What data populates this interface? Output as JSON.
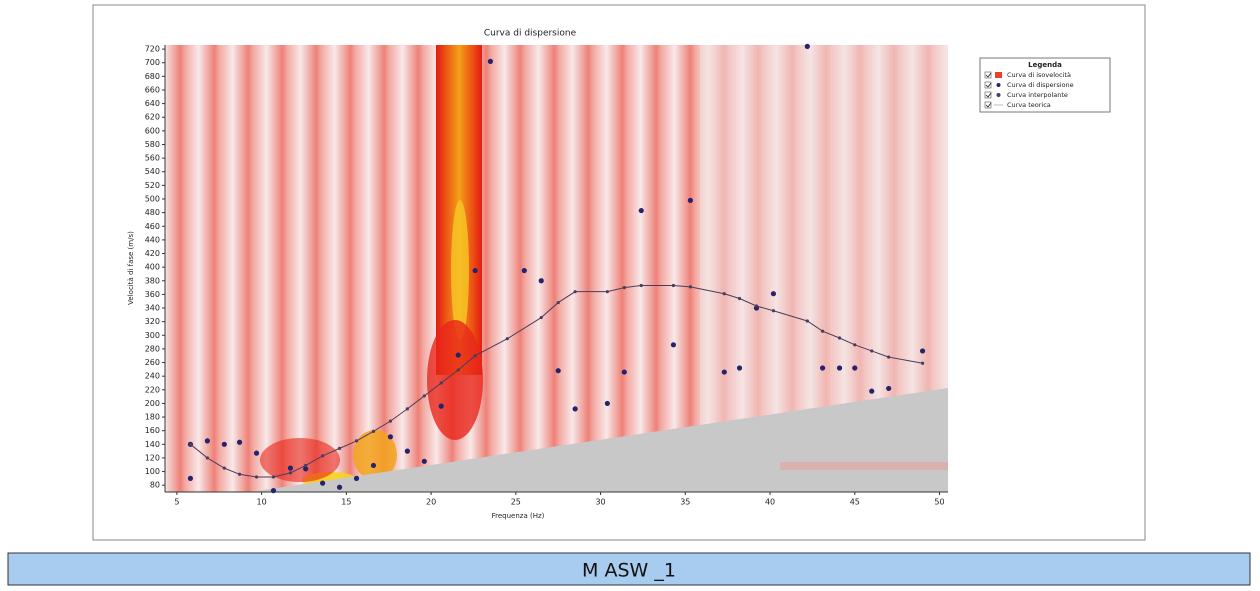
{
  "chart_data": {
    "type": "scatter",
    "title": "Curva di dispersione",
    "x_label": "Frequenza (Hz)",
    "y_label": "Velocità di fase (m/s)",
    "xlim": [
      4.3,
      50.5
    ],
    "ylim": [
      70,
      726
    ],
    "xticks": [
      5,
      10,
      15,
      20,
      25,
      30,
      35,
      40,
      45,
      50
    ],
    "yticks": [
      80,
      100,
      120,
      140,
      160,
      180,
      200,
      220,
      240,
      260,
      280,
      300,
      320,
      340,
      360,
      380,
      400,
      420,
      440,
      460,
      480,
      500,
      520,
      540,
      560,
      580,
      600,
      620,
      640,
      660,
      680,
      700,
      720
    ],
    "grid": false,
    "legend_title": "Legenda",
    "legend_position": "upper right",
    "series": [
      {
        "name": "Curva di isovelocità",
        "kind": "heatmap",
        "color": "#e8402a"
      },
      {
        "name": "Curva di dispersione",
        "kind": "points",
        "color": "#25236b",
        "x": [
          5.8,
          5.8,
          6.8,
          7.8,
          8.7,
          9.7,
          10.7,
          11.7,
          12.6,
          13.6,
          14.6,
          15.6,
          16.6,
          17.6,
          18.6,
          19.6,
          20.6,
          21.6,
          22.6,
          23.5,
          25.5,
          26.5,
          27.5,
          28.5,
          30.4,
          31.4,
          32.4,
          34.3,
          35.3,
          37.3,
          38.2,
          39.2,
          40.2,
          42.2,
          43.1,
          44.1,
          45.0,
          46.0,
          47.0,
          49.0
        ],
        "values": [
          140,
          90,
          145,
          140,
          143,
          127,
          72,
          105,
          104,
          83,
          77,
          90,
          109,
          151,
          130,
          115,
          196,
          271,
          395,
          702,
          395,
          380,
          248,
          192,
          200,
          246,
          483,
          286,
          498,
          246,
          252,
          340,
          361,
          724,
          252,
          252,
          252,
          218,
          222,
          277
        ]
      },
      {
        "name": "Curva interpolante",
        "kind": "line",
        "color": "#4a3d5c",
        "x": [
          5.8,
          6.8,
          7.8,
          8.7,
          9.7,
          10.7,
          11.7,
          12.6,
          13.6,
          14.6,
          15.6,
          16.6,
          17.6,
          18.6,
          19.6,
          20.6,
          21.6,
          22.6,
          24.5,
          26.5,
          27.5,
          28.5,
          30.4,
          31.4,
          32.4,
          34.3,
          35.3,
          37.3,
          38.2,
          39.2,
          40.2,
          42.2,
          43.1,
          44.1,
          45.0,
          46.0,
          47.0,
          49.0
        ],
        "values": [
          140,
          120,
          105,
          96,
          92,
          92,
          98,
          109,
          123,
          134,
          145,
          159,
          174,
          192,
          211,
          230,
          249,
          270,
          295,
          326,
          348,
          364,
          364,
          370,
          373,
          373,
          371,
          361,
          354,
          343,
          336,
          321,
          306,
          296,
          286,
          277,
          268,
          259
        ]
      },
      {
        "name": "Curva teorica",
        "kind": "theory",
        "color": "#ffffff"
      }
    ]
  },
  "footer": {
    "label": "M ASW _1"
  }
}
